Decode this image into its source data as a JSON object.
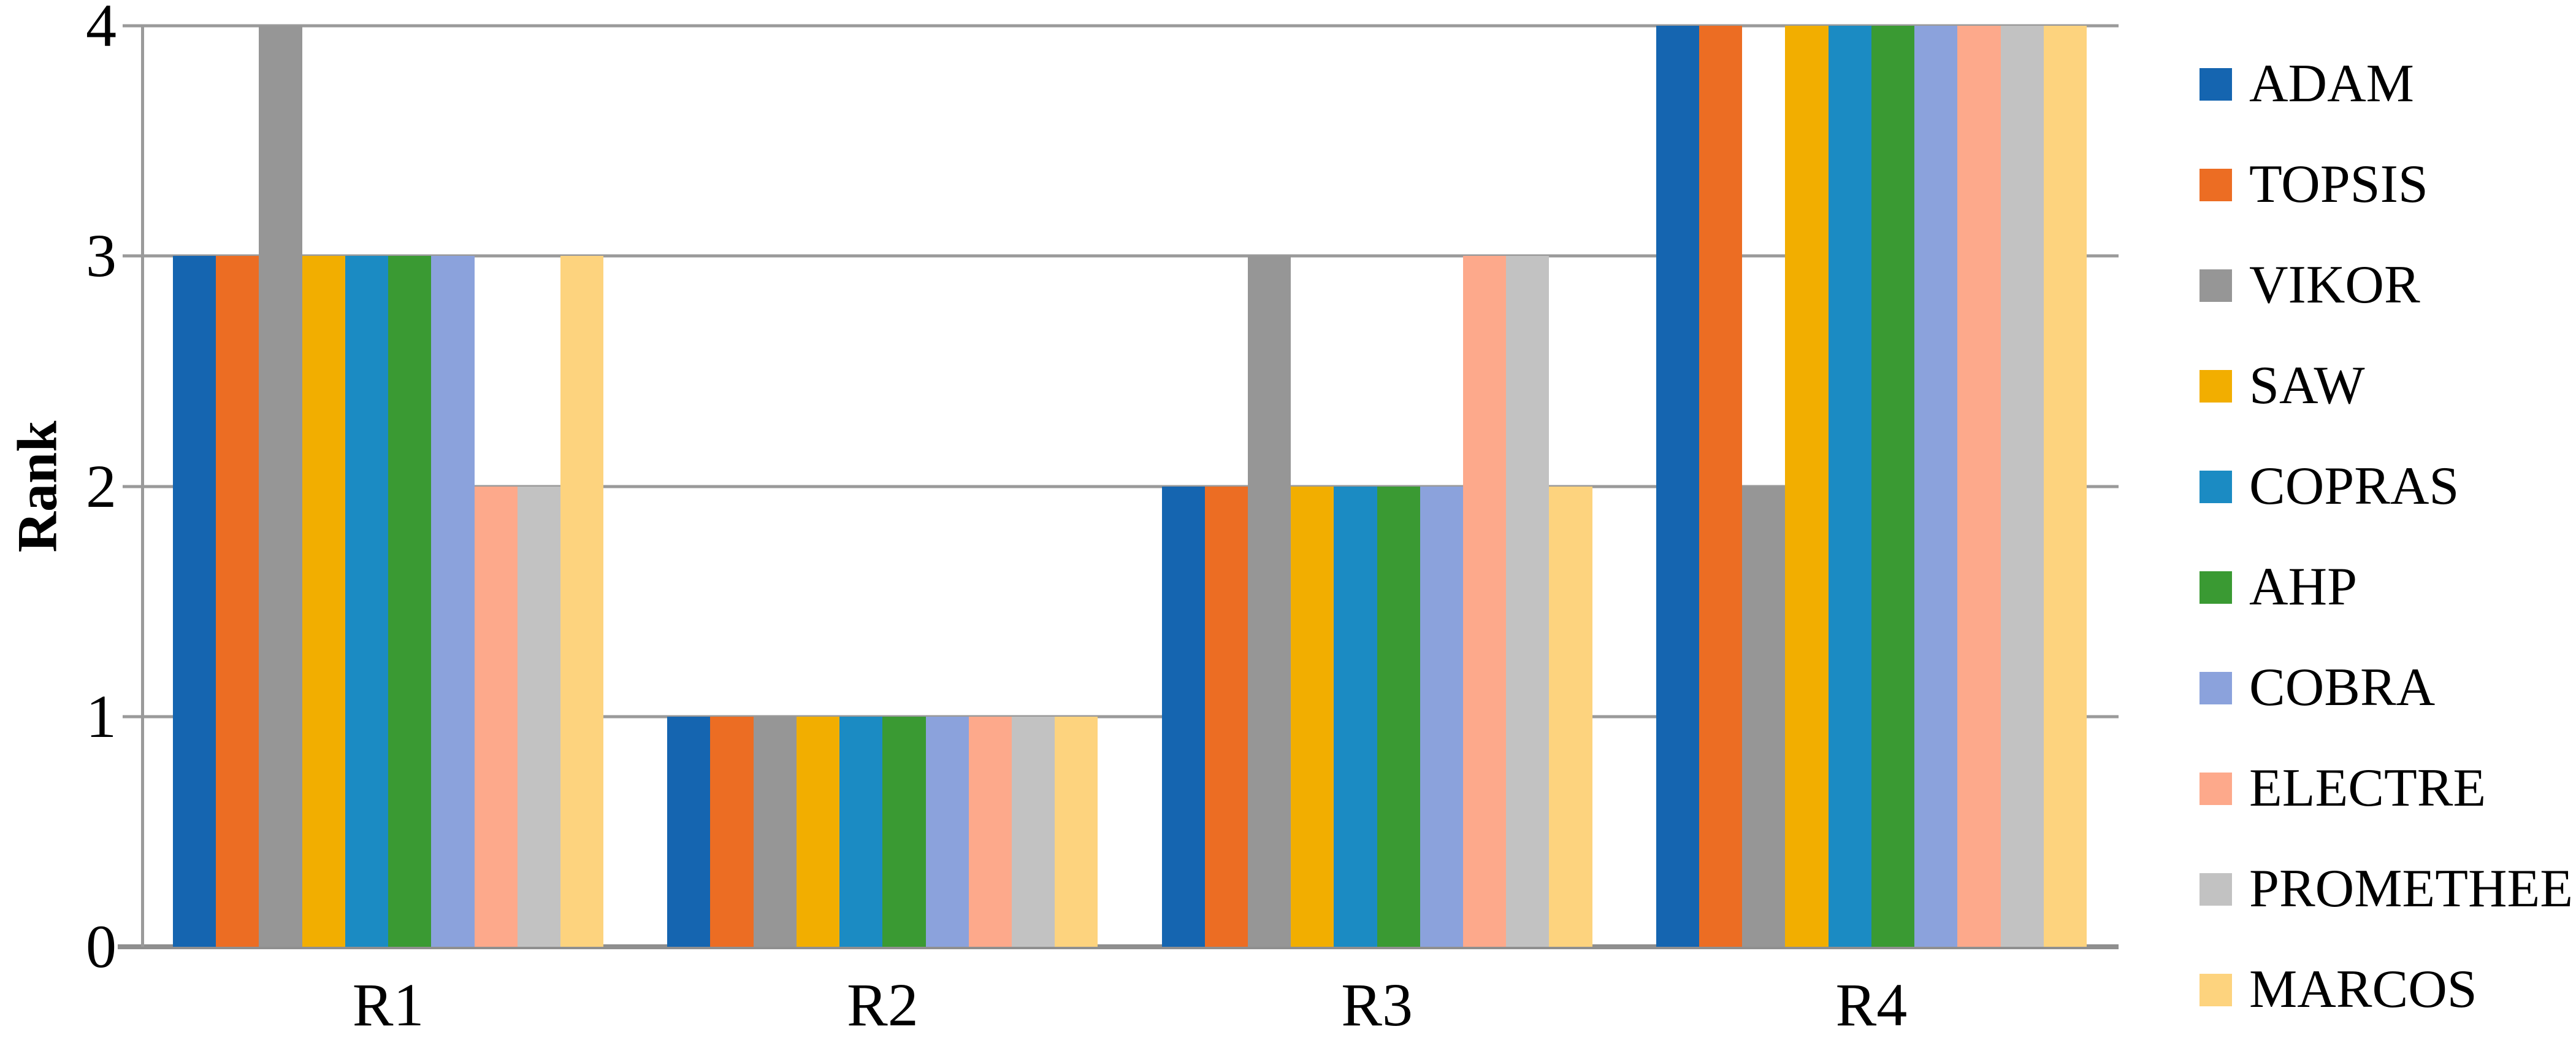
{
  "chart_data": {
    "type": "bar",
    "title": "",
    "xlabel": "",
    "ylabel": "Rank",
    "categories": [
      "R1",
      "R2",
      "R3",
      "R4"
    ],
    "yticks": [
      0,
      1,
      2,
      3,
      4
    ],
    "ylim": [
      0,
      4
    ],
    "grid": true,
    "legend_position": "right",
    "series": [
      {
        "name": "ADAM",
        "color": "#1565b0",
        "values": [
          3,
          1,
          2,
          4
        ]
      },
      {
        "name": "TOPSIS",
        "color": "#ec6d23",
        "values": [
          3,
          1,
          2,
          4
        ]
      },
      {
        "name": "VIKOR",
        "color": "#969696",
        "values": [
          4,
          1,
          3,
          2
        ]
      },
      {
        "name": "SAW",
        "color": "#f2ae00",
        "values": [
          3,
          1,
          2,
          4
        ]
      },
      {
        "name": "COPRAS",
        "color": "#1b8bc3",
        "values": [
          3,
          1,
          2,
          4
        ]
      },
      {
        "name": "AHP",
        "color": "#3a9a33",
        "values": [
          3,
          1,
          2,
          4
        ]
      },
      {
        "name": "COBRA",
        "color": "#8ba2dc",
        "values": [
          3,
          1,
          2,
          4
        ]
      },
      {
        "name": "ELECTRE",
        "color": "#fda98b",
        "values": [
          2,
          1,
          3,
          4
        ]
      },
      {
        "name": "PROMETHEE",
        "color": "#c2c2c2",
        "values": [
          2,
          1,
          3,
          4
        ]
      },
      {
        "name": "MARCOS",
        "color": "#fdd37e",
        "values": [
          3,
          1,
          2,
          4
        ]
      }
    ],
    "axis_color": "#9a9a9a",
    "grid_color": "#9a9a9a",
    "baseline_color": "#8f8f8f"
  }
}
